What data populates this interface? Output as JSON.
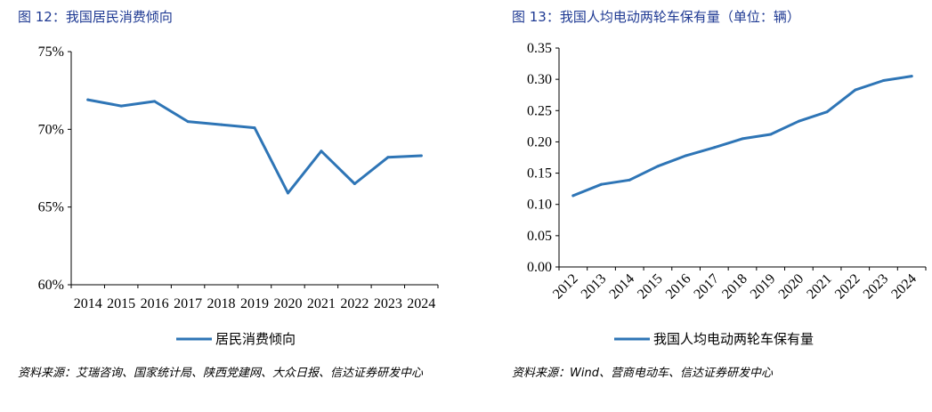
{
  "figures": [
    {
      "caption": "图 12：我国居民消费倾向",
      "source": "资料来源：艾瑞咨询、国家统计局、陕西党建网、大众日报、信达证券研发中心"
    },
    {
      "caption": "图 13：我国人均电动两轮车保有量（单位：辆）",
      "source": "资料来源：Wind、营商电动车、信达证券研发中心"
    }
  ],
  "colors": {
    "line": "#2e75b6",
    "axis": "#000000",
    "title": "#1f3a93"
  },
  "chart_data": [
    {
      "type": "line",
      "title": "我国居民消费倾向",
      "xlabel": "",
      "ylabel": "",
      "categories": [
        "2014",
        "2015",
        "2016",
        "2017",
        "2018",
        "2019",
        "2020",
        "2021",
        "2022",
        "2023",
        "2024"
      ],
      "series": [
        {
          "name": "居民消费倾向",
          "values": [
            71.9,
            71.5,
            71.8,
            70.5,
            70.3,
            70.1,
            65.9,
            68.6,
            66.5,
            68.2,
            68.3
          ]
        }
      ],
      "ylim": [
        60,
        75
      ],
      "yticks": [
        60,
        65,
        70,
        75
      ],
      "ytick_labels": [
        "60%",
        "65%",
        "70%",
        "75%"
      ],
      "grid": false,
      "legend": "bottom"
    },
    {
      "type": "line",
      "title": "我国人均电动两轮车保有量（单位：辆）",
      "xlabel": "",
      "ylabel": "",
      "categories": [
        "2012",
        "2013",
        "2014",
        "2015",
        "2016",
        "2017",
        "2018",
        "2019",
        "2020",
        "2021",
        "2022",
        "2023",
        "2024"
      ],
      "series": [
        {
          "name": "我国人均电动两轮车保有量",
          "values": [
            0.114,
            0.132,
            0.139,
            0.161,
            0.178,
            0.191,
            0.205,
            0.212,
            0.233,
            0.248,
            0.283,
            0.298,
            0.305
          ]
        }
      ],
      "ylim": [
        0,
        0.35
      ],
      "yticks": [
        0,
        0.05,
        0.1,
        0.15,
        0.2,
        0.25,
        0.3,
        0.35
      ],
      "ytick_labels": [
        "0.00",
        "0.05",
        "0.10",
        "0.15",
        "0.20",
        "0.25",
        "0.30",
        "0.35"
      ],
      "grid": false,
      "legend": "bottom"
    }
  ]
}
